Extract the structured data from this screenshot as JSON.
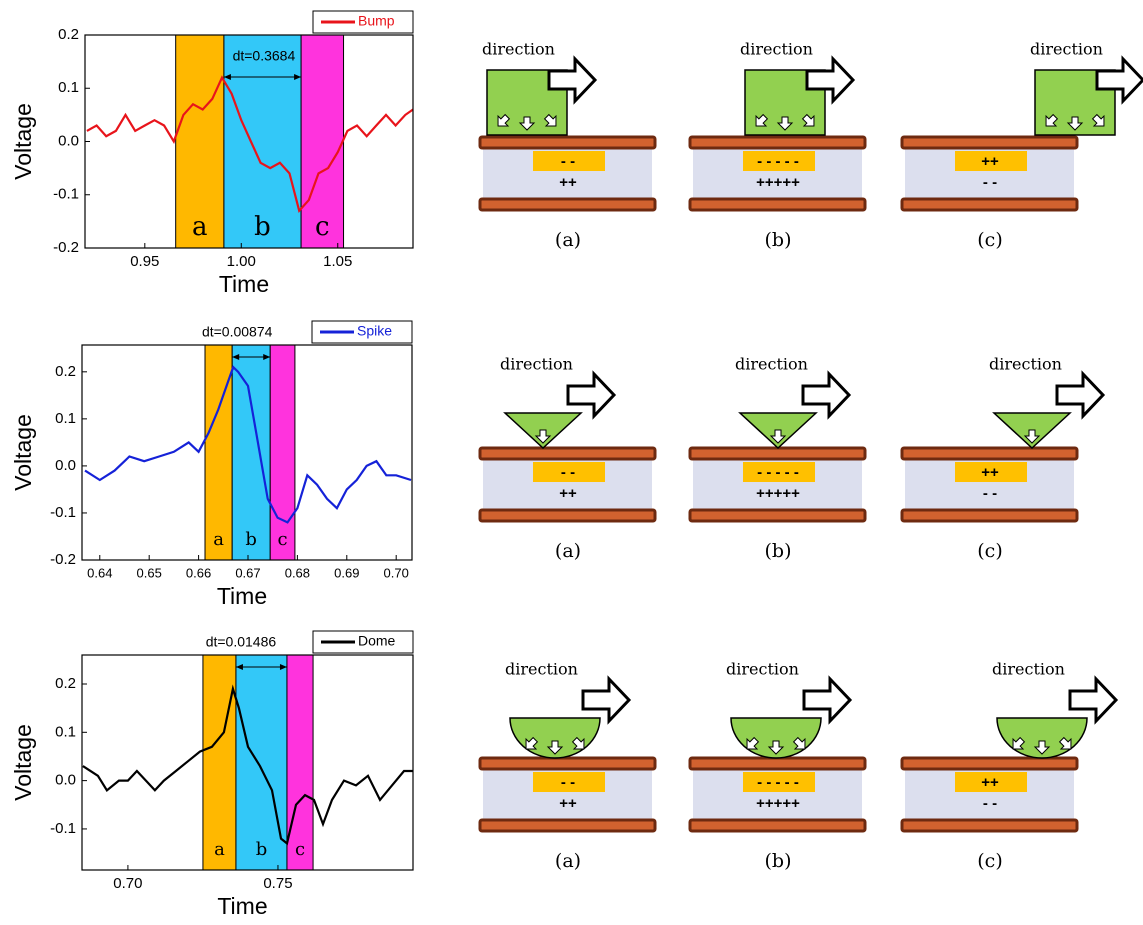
{
  "chart_data": [
    {
      "type": "line",
      "x_label": "Time",
      "y_label": "Voltage",
      "xlim": [
        0.919,
        1.089
      ],
      "ylim": [
        -0.2,
        0.2
      ],
      "xticks": [
        0.95,
        {
          "value": 1,
          "label": "1.00"
        },
        1.05
      ],
      "yticks": [
        0.2,
        0.1,
        {
          "value": 0,
          "label": "0.0"
        },
        -0.1,
        -0.2
      ],
      "x": [
        0.92,
        0.925,
        0.93,
        0.935,
        0.94,
        0.945,
        0.95,
        0.955,
        0.96,
        0.965,
        0.97,
        0.975,
        0.98,
        0.985,
        0.99,
        0.995,
        1.0,
        1.005,
        1.01,
        1.015,
        1.02,
        1.025,
        1.03,
        1.035,
        1.04,
        1.045,
        1.05,
        1.055,
        1.06,
        1.065,
        1.07,
        1.075,
        1.08,
        1.085,
        1.089
      ],
      "series": [
        {
          "name": "Bump",
          "color": "#e8141b",
          "values": [
            0.02,
            0.03,
            0.01,
            0.02,
            0.05,
            0.02,
            0.03,
            0.04,
            0.03,
            0.0,
            0.05,
            0.07,
            0.06,
            0.08,
            0.12,
            0.09,
            0.04,
            0.0,
            -0.04,
            -0.05,
            -0.04,
            -0.06,
            -0.13,
            -0.11,
            -0.06,
            -0.05,
            -0.02,
            0.02,
            0.03,
            0.01,
            0.03,
            0.05,
            0.03,
            0.05,
            0.06
          ]
        }
      ],
      "regions": [
        {
          "label": "a",
          "x0": 0.966,
          "x1": 0.991,
          "color": "#ffb800"
        },
        {
          "label": "b",
          "x0": 0.991,
          "x1": 1.031,
          "color": "#33c8f8"
        },
        {
          "label": "c",
          "x0": 1.031,
          "x1": 1.053,
          "color": "#ff33dd"
        }
      ],
      "annotation": "dt=0.3684"
    },
    {
      "type": "line",
      "x_label": "Time",
      "y_label": "Voltage",
      "xlim": [
        0.6364,
        0.7032
      ],
      "ylim": [
        -0.2,
        0.257
      ],
      "xticks": [
        0.64,
        0.65,
        0.66,
        0.67,
        0.68,
        0.69,
        {
          "value": 0.7,
          "label": "0.70"
        }
      ],
      "yticks": [
        0.2,
        0.1,
        {
          "value": 0,
          "label": "0.0"
        },
        -0.1,
        -0.2
      ],
      "x": [
        0.637,
        0.64,
        0.643,
        0.646,
        0.649,
        0.652,
        0.655,
        0.658,
        0.66,
        0.662,
        0.664,
        0.666,
        0.667,
        0.668,
        0.67,
        0.672,
        0.674,
        0.676,
        0.678,
        0.68,
        0.682,
        0.684,
        0.686,
        0.688,
        0.69,
        0.692,
        0.694,
        0.696,
        0.698,
        0.7,
        0.703
      ],
      "series": [
        {
          "name": "Spike",
          "color": "#1522d8",
          "values": [
            -0.01,
            -0.03,
            -0.01,
            0.02,
            0.01,
            0.02,
            0.03,
            0.05,
            0.03,
            0.07,
            0.12,
            0.18,
            0.21,
            0.2,
            0.17,
            0.05,
            -0.07,
            -0.11,
            -0.12,
            -0.09,
            -0.02,
            -0.04,
            -0.07,
            -0.09,
            -0.05,
            -0.03,
            0.0,
            0.01,
            -0.02,
            -0.02,
            -0.03
          ]
        }
      ],
      "regions": [
        {
          "label": "a",
          "x0": 0.6613,
          "x1": 0.6668,
          "color": "#ffb800"
        },
        {
          "label": "b",
          "x0": 0.6668,
          "x1": 0.6745,
          "color": "#33c8f8"
        },
        {
          "label": "c",
          "x0": 0.6745,
          "x1": 0.6795,
          "color": "#ff33dd"
        }
      ],
      "annotation": "dt=0.00874"
    },
    {
      "type": "line",
      "x_label": "Time",
      "y_label": "Voltage",
      "xlim": [
        0.6847,
        0.795
      ],
      "ylim": [
        -0.185,
        0.26
      ],
      "xticks": [
        {
          "value": 0.7,
          "label": "0.70"
        },
        0.75
      ],
      "yticks": [
        0.2,
        0.1,
        {
          "value": 0,
          "label": "0.0"
        },
        -0.1
      ],
      "x": [
        0.685,
        0.69,
        0.693,
        0.697,
        0.7,
        0.703,
        0.706,
        0.709,
        0.712,
        0.716,
        0.72,
        0.724,
        0.728,
        0.732,
        0.735,
        0.737,
        0.74,
        0.744,
        0.748,
        0.751,
        0.753,
        0.756,
        0.759,
        0.762,
        0.765,
        0.768,
        0.772,
        0.776,
        0.78,
        0.784,
        0.788,
        0.792,
        0.795
      ],
      "series": [
        {
          "name": "Dome",
          "color": "#000000",
          "values": [
            0.03,
            0.01,
            -0.02,
            0.0,
            0.0,
            0.02,
            0.0,
            -0.02,
            0.0,
            0.02,
            0.04,
            0.06,
            0.07,
            0.1,
            0.19,
            0.15,
            0.07,
            0.03,
            -0.02,
            -0.12,
            -0.13,
            -0.05,
            -0.03,
            -0.04,
            -0.09,
            -0.04,
            0.0,
            -0.01,
            0.01,
            -0.04,
            -0.01,
            0.02,
            0.02
          ]
        }
      ],
      "regions": [
        {
          "label": "a",
          "x0": 0.725,
          "x1": 0.736,
          "color": "#ffb800"
        },
        {
          "label": "b",
          "x0": 0.736,
          "x1": 0.753,
          "color": "#33c8f8"
        },
        {
          "label": "c",
          "x0": 0.753,
          "x1": 0.7617,
          "color": "#ff33dd"
        }
      ],
      "annotation": "dt=0.01486"
    }
  ],
  "diagrams": {
    "rows": [
      {
        "panels": [
          {
            "direction": "direction",
            "top_charge": "- -",
            "bottom_charge": "++",
            "caption": "(a)"
          },
          {
            "direction": "direction",
            "top_charge": "- - - - -",
            "bottom_charge": "+++++",
            "caption": "(b)"
          },
          {
            "direction": "direction",
            "top_charge": "++",
            "bottom_charge": "- -",
            "caption": "(c)"
          }
        ]
      },
      {
        "panels": [
          {
            "direction": "direction",
            "top_charge": "- -",
            "bottom_charge": "++",
            "caption": "(a)"
          },
          {
            "direction": "direction",
            "top_charge": "- - - - -",
            "bottom_charge": "+++++",
            "caption": "(b)"
          },
          {
            "direction": "direction",
            "top_charge": "++",
            "bottom_charge": "- -",
            "caption": "(c)"
          }
        ]
      },
      {
        "panels": [
          {
            "direction": "direction",
            "top_charge": "- -",
            "bottom_charge": "++",
            "caption": "(a)"
          },
          {
            "direction": "direction",
            "top_charge": "- - - - -",
            "bottom_charge": "+++++",
            "caption": "(b)"
          },
          {
            "direction": "direction",
            "top_charge": "++",
            "bottom_charge": "- -",
            "caption": "(c)"
          }
        ]
      }
    ]
  }
}
